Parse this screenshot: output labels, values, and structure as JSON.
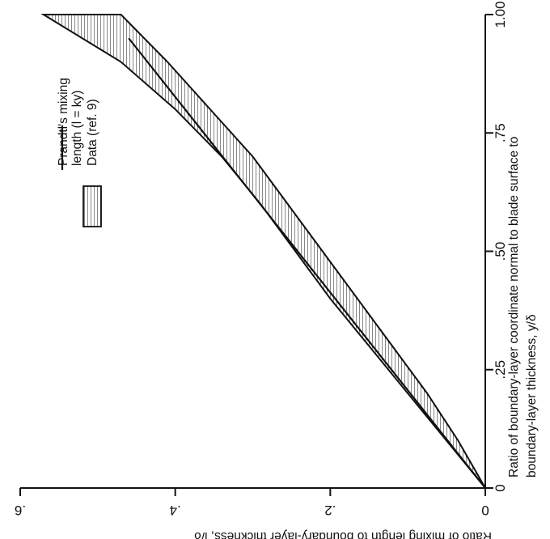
{
  "chart_data": {
    "type": "area",
    "orientation": "rotated 90 degrees clockwise",
    "xlabel_line1": "Ratio of boundary-layer coordinate normal to blade surface to",
    "xlabel_line2": "boundary-layer thickness, y/δ",
    "ylabel": "Ratio of mixing length to boundary-layer thickness, l/δ",
    "x_ticks": [
      "0",
      ".25",
      ".50",
      ".75",
      "1.00"
    ],
    "y_ticks": [
      "0",
      ".2",
      ".4",
      ".6"
    ],
    "xlim": [
      0,
      1.0
    ],
    "ylim": [
      0,
      0.6
    ],
    "legend": {
      "placement": "upper-left",
      "line_entry_line1": "Prandtl's mixing",
      "line_entry_line2": "length (l = ky)",
      "band_entry": "Data (ref. 9)"
    },
    "series": [
      {
        "name": "Prandtl's mixing length (l = ky)",
        "kind": "line",
        "x": [
          0,
          0.95
        ],
        "y": [
          0,
          0.46
        ]
      },
      {
        "name": "Data (ref. 9)",
        "kind": "band",
        "x": [
          0,
          0.1,
          0.2,
          0.3,
          0.4,
          0.5,
          0.6,
          0.7,
          0.8,
          0.9,
          1.0
        ],
        "upper": [
          0,
          0.05,
          0.1,
          0.15,
          0.2,
          0.245,
          0.29,
          0.34,
          0.4,
          0.47,
          0.57
        ],
        "lower": [
          0,
          0.035,
          0.075,
          0.12,
          0.165,
          0.21,
          0.255,
          0.3,
          0.355,
          0.41,
          0.47
        ]
      }
    ]
  }
}
